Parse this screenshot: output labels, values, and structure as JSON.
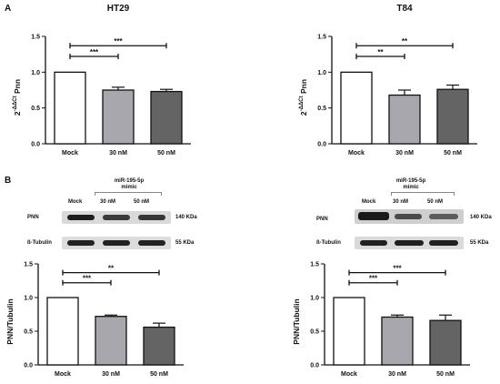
{
  "panel_labels": {
    "a": "A",
    "b": "B"
  },
  "blots": [
    {
      "header": {
        "mock": "Mock",
        "c30": "30 nM",
        "c50": "50 nM",
        "group_line1": "miR-195-5p",
        "group_line2": "mimic"
      },
      "rows": [
        {
          "label": "PNN",
          "size": "140 KDa",
          "band_intensity": [
            0.95,
            0.8,
            0.82
          ]
        },
        {
          "label": "ß-Tubulin",
          "size": "55 KDa",
          "band_intensity": [
            0.95,
            0.95,
            0.95
          ]
        }
      ]
    },
    {
      "header": {
        "mock": "Mock",
        "c30": "30 nM",
        "c50": "50 nM",
        "group_line1": "miR-195-5p",
        "group_line2": "mimic"
      },
      "rows": [
        {
          "label": "PNN",
          "size": "140 KDa",
          "band_intensity": [
            0.95,
            0.7,
            0.6
          ]
        },
        {
          "label": "ß-Tubulin",
          "size": "55 KDa",
          "band_intensity": [
            0.95,
            0.95,
            0.95
          ]
        }
      ]
    }
  ],
  "colors": {
    "mock": "#ffffff",
    "c30": "#a7a7ad",
    "c50": "#646464",
    "axis": "#111111"
  },
  "chart_data": [
    {
      "type": "bar",
      "title": "HT29",
      "ylabel": "2^-ΔΔCt Pnn",
      "xlabel": "",
      "categories": [
        "Mock",
        "30 nM",
        "50 nM"
      ],
      "values": [
        1.0,
        0.75,
        0.73
      ],
      "errors": [
        0,
        0.04,
        0.03
      ],
      "ylim": [
        0,
        1.5
      ],
      "yticks": [
        "0.0",
        "0.5",
        "1.0",
        "1.5"
      ],
      "significance": [
        {
          "from": 0,
          "to": 1,
          "label": "***"
        },
        {
          "from": 0,
          "to": 2,
          "label": "***"
        }
      ]
    },
    {
      "type": "bar",
      "title": "T84",
      "ylabel": "2^-ΔΔCt Pnn",
      "xlabel": "",
      "categories": [
        "Mock",
        "30 nM",
        "50 nM"
      ],
      "values": [
        1.0,
        0.68,
        0.76
      ],
      "errors": [
        0,
        0.07,
        0.06
      ],
      "ylim": [
        0,
        1.5
      ],
      "yticks": [
        "0.0",
        "0.5",
        "1.0",
        "1.5"
      ],
      "significance": [
        {
          "from": 0,
          "to": 1,
          "label": "**"
        },
        {
          "from": 0,
          "to": 2,
          "label": "**"
        }
      ]
    },
    {
      "type": "bar",
      "title": "",
      "ylabel": "PNN/Tubulin",
      "xlabel": "",
      "categories": [
        "Mock",
        "30 nM",
        "50 nM"
      ],
      "values": [
        1.0,
        0.72,
        0.56
      ],
      "errors": [
        0,
        0.02,
        0.06
      ],
      "ylim": [
        0,
        1.5
      ],
      "yticks": [
        "0.0",
        "0.5",
        "1.0",
        "1.5"
      ],
      "significance": [
        {
          "from": 0,
          "to": 1,
          "label": "***"
        },
        {
          "from": 0,
          "to": 2,
          "label": "**"
        }
      ]
    },
    {
      "type": "bar",
      "title": "",
      "ylabel": "PNN/Tubulin",
      "xlabel": "",
      "categories": [
        "Mock",
        "30 nM",
        "50 nM"
      ],
      "values": [
        1.0,
        0.71,
        0.66
      ],
      "errors": [
        0,
        0.03,
        0.08
      ],
      "ylim": [
        0,
        1.5
      ],
      "yticks": [
        "0.0",
        "0.5",
        "1.0",
        "1.5"
      ],
      "significance": [
        {
          "from": 0,
          "to": 1,
          "label": "***"
        },
        {
          "from": 0,
          "to": 2,
          "label": "***"
        }
      ]
    }
  ]
}
